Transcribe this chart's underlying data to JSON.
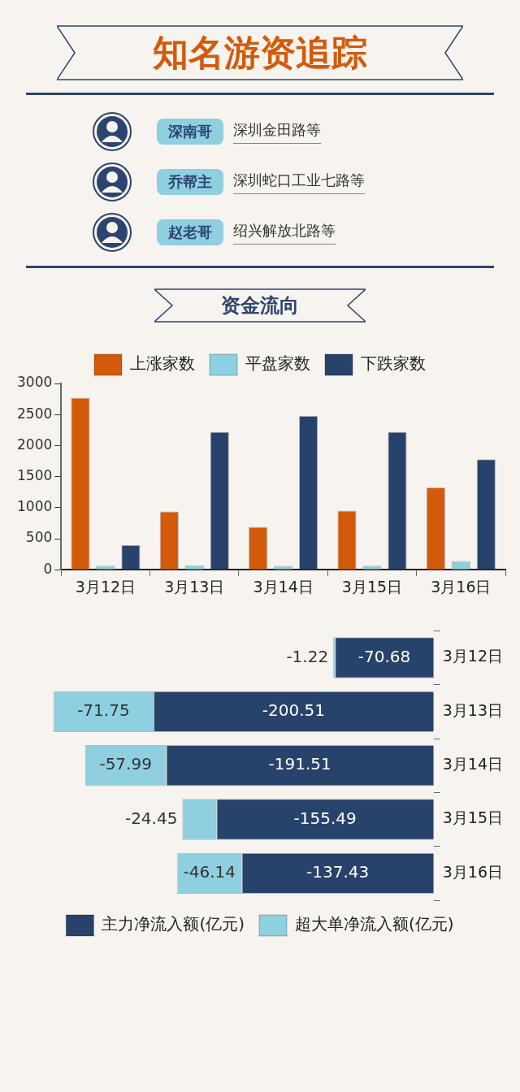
{
  "chart_data": [
    {
      "type": "other",
      "title": "知名游资追踪",
      "annotations": [
        "深南哥",
        "深圳金田路等",
        "乔帮主",
        "深圳蛇口工业七路等",
        "赵老哥",
        "绍兴解放北路等"
      ]
    },
    {
      "type": "bar",
      "title": "资金流向",
      "categories": [
        "3月12日",
        "3月13日",
        "3月14日",
        "3月15日",
        "3月16日"
      ],
      "series": [
        {
          "name": "上涨家数",
          "color": "#d35a0b",
          "values": [
            2770,
            940,
            690,
            950,
            1325
          ]
        },
        {
          "name": "平盘家数",
          "color": "#8ecfe0",
          "values": [
            65,
            70,
            60,
            65,
            140
          ]
        },
        {
          "name": "下跌家数",
          "color": "#27426b",
          "values": [
            400,
            2220,
            2480,
            2220,
            1780
          ]
        }
      ],
      "ylim": [
        0,
        3000
      ],
      "yticks": [
        0,
        500,
        1000,
        1500,
        2000,
        2500,
        3000
      ],
      "grid": false,
      "legend": "top"
    },
    {
      "type": "bar",
      "orientation": "horizontal",
      "stacked": true,
      "categories": [
        "3月12日",
        "3月13日",
        "3月14日",
        "3月15日",
        "3月16日"
      ],
      "series": [
        {
          "name": "主力净流入额(亿元)",
          "color": "#27426b",
          "values": [
            -70.68,
            -200.51,
            -191.51,
            -155.49,
            -137.43
          ]
        },
        {
          "name": "超大单净流入额(亿元)",
          "color": "#8ecfe0",
          "values": [
            -1.22,
            -71.75,
            -57.99,
            -24.45,
            -46.14
          ]
        }
      ],
      "data_labels": true,
      "tick_labels": "y",
      "grid": false,
      "legend": "bottom"
    }
  ]
}
